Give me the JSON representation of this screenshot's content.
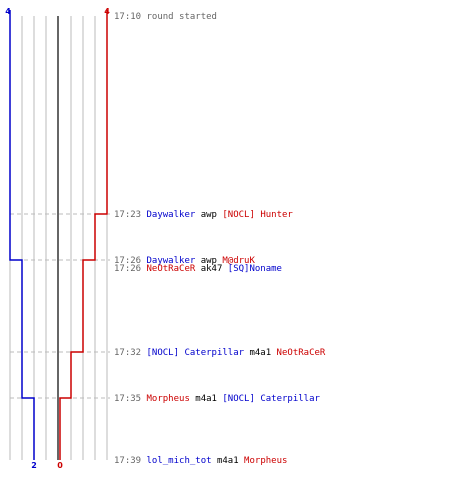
{
  "colors": {
    "team_blue": "#0000cc",
    "team_red": "#cc0000",
    "neutral_text": "#000000",
    "time_text": "#666666",
    "grid": "#bbbbbb",
    "center_line": "#666666",
    "dashed": "#bbbbbb"
  },
  "scores": {
    "blue_start": "4",
    "red_start": "4",
    "blue_end": "2",
    "red_end": "0"
  },
  "events": [
    {
      "time": "17:10",
      "parts": [
        {
          "text": "round started",
          "team": "none"
        }
      ]
    },
    {
      "time": "17:23",
      "parts": [
        {
          "text": "Daywalker",
          "team": "blue"
        },
        {
          "text": "awp",
          "team": "neutral"
        },
        {
          "text": "[NOCL] Hunter",
          "team": "red"
        }
      ]
    },
    {
      "time": "17:26",
      "parts": [
        {
          "text": "Daywalker",
          "team": "blue"
        },
        {
          "text": "awp",
          "team": "neutral"
        },
        {
          "text": "M@druK",
          "team": "red"
        }
      ]
    },
    {
      "time": "17:26",
      "parts": [
        {
          "text": "NeOtRaCeR",
          "team": "red"
        },
        {
          "text": "ak47",
          "team": "neutral"
        },
        {
          "text": "[SQ]Noname",
          "team": "blue"
        }
      ]
    },
    {
      "time": "17:32",
      "parts": [
        {
          "text": "[NOCL] Caterpillar",
          "team": "blue"
        },
        {
          "text": "m4a1",
          "team": "neutral"
        },
        {
          "text": "NeOtRaCeR",
          "team": "red"
        }
      ]
    },
    {
      "time": "17:35",
      "parts": [
        {
          "text": "Morpheus",
          "team": "red"
        },
        {
          "text": "m4a1",
          "team": "neutral"
        },
        {
          "text": "[NOCL] Caterpillar",
          "team": "blue"
        }
      ]
    },
    {
      "time": "17:39",
      "parts": [
        {
          "text": "lol_mich_tot",
          "team": "blue"
        },
        {
          "text": "m4a1",
          "team": "neutral"
        },
        {
          "text": "Morpheus",
          "team": "red"
        }
      ]
    }
  ]
}
